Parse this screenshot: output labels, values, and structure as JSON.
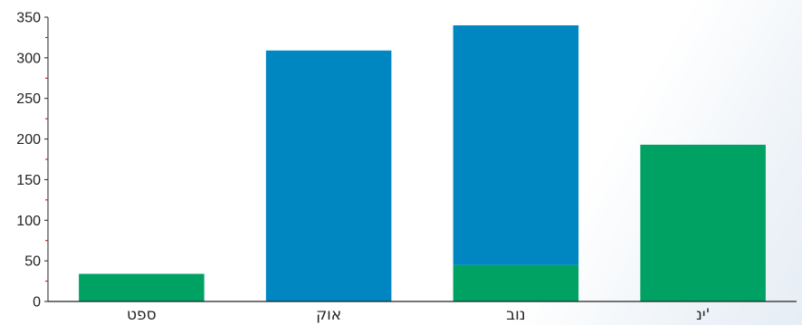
{
  "chart_data": {
    "type": "bar",
    "stacked": true,
    "categories": [
      "ספט",
      "אוק",
      "נוב",
      "ינ'"
    ],
    "series": [
      {
        "color": "#00a264",
        "values": [
          34,
          0,
          45,
          193
        ]
      },
      {
        "color": "#0086c1",
        "values": [
          0,
          309,
          295,
          0
        ]
      }
    ],
    "ylim": [
      0,
      350
    ],
    "yticks": [
      0,
      50,
      100,
      150,
      200,
      250,
      300,
      350
    ],
    "minor_tick_color": "#cc0000",
    "grid": false,
    "legend": "none"
  }
}
